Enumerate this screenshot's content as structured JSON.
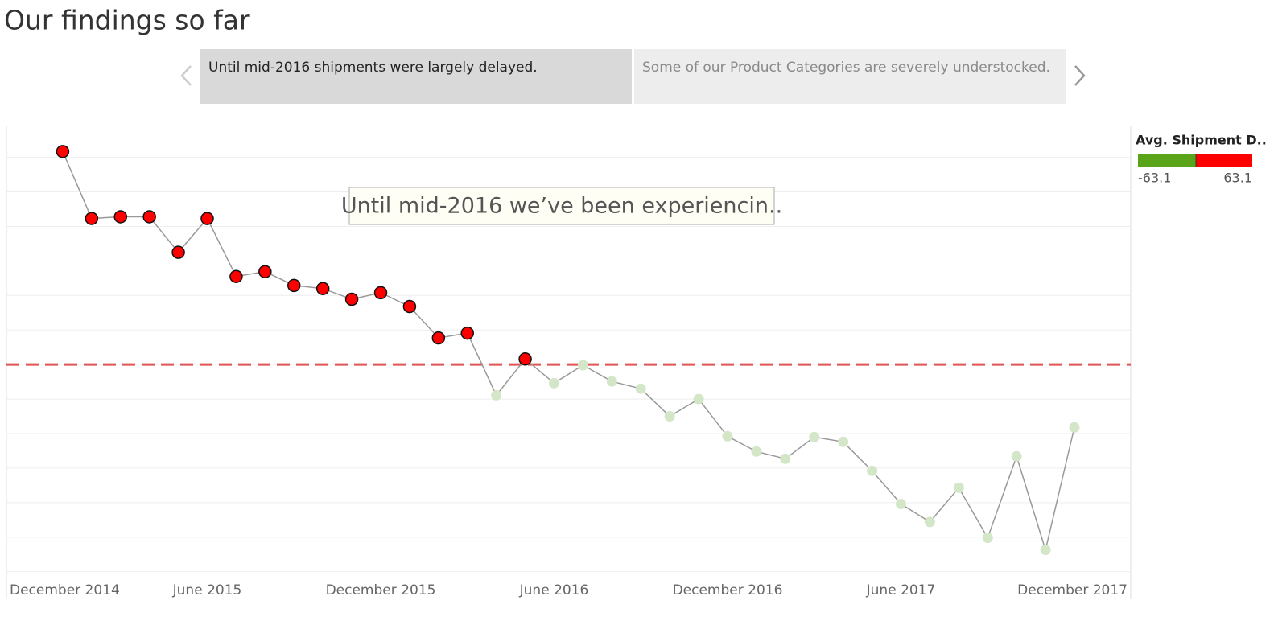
{
  "story": {
    "title": "Our findings so far",
    "points": [
      "Until mid-2016 shipments were largely delayed.",
      "Some of our Product Categories are severely understocked."
    ]
  },
  "chart_data": {
    "type": "line",
    "annotation": "Until mid-2016 we’ve been experiencin..",
    "x": [
      "2015-01",
      "2015-02",
      "2015-03",
      "2015-04",
      "2015-05",
      "2015-06",
      "2015-07",
      "2015-08",
      "2015-09",
      "2015-10",
      "2015-11",
      "2015-12",
      "2016-01",
      "2016-02",
      "2016-03",
      "2016-04",
      "2016-05",
      "2016-06",
      "2016-07",
      "2016-08",
      "2016-09",
      "2016-10",
      "2016-11",
      "2016-12",
      "2017-01",
      "2017-02",
      "2017-03",
      "2017-04",
      "2017-05",
      "2017-06",
      "2017-07",
      "2017-08",
      "2017-09",
      "2017-10",
      "2017-11",
      "2017-12"
    ],
    "values": [
      61.7,
      42.3,
      42.8,
      42.8,
      32.5,
      42.3,
      25.5,
      26.9,
      22.9,
      22.0,
      18.9,
      20.8,
      16.8,
      7.7,
      9.1,
      -8.9,
      1.6,
      -5.4,
      -0.2,
      -4.9,
      -7.0,
      -15.0,
      -10.0,
      -20.8,
      -25.2,
      -27.3,
      -21.0,
      -22.4,
      -30.8,
      -40.4,
      -45.6,
      -35.7,
      -50.2,
      -26.6,
      -53.7,
      -18.2
    ],
    "line_color": "#999999",
    "positive_color": "#ff0000",
    "negative_color": "#d4e6c8",
    "reference_line": 0,
    "reference_color": "#e05555",
    "xlim": [
      "2014-12",
      "2017-12"
    ],
    "xticks": [
      {
        "value": "2014-12",
        "label": "December 2014"
      },
      {
        "value": "2015-06",
        "label": "June 2015"
      },
      {
        "value": "2015-12",
        "label": "December 2015"
      },
      {
        "value": "2016-06",
        "label": "June 2016"
      },
      {
        "value": "2016-12",
        "label": "December 2016"
      },
      {
        "value": "2017-06",
        "label": "June 2017"
      },
      {
        "value": "2017-12",
        "label": "December 2017"
      }
    ],
    "ylim": [
      -68,
      69
    ],
    "yticks": [
      -60,
      -50,
      -40,
      -30,
      -20,
      -10,
      0,
      10,
      20,
      30,
      40,
      50,
      60
    ],
    "grid": true,
    "legend": {
      "title": "Avg. Shipment D..",
      "min": -63.1,
      "max": 63.1,
      "min_color": "#5aa41a",
      "max_color": "#ff0000"
    }
  }
}
